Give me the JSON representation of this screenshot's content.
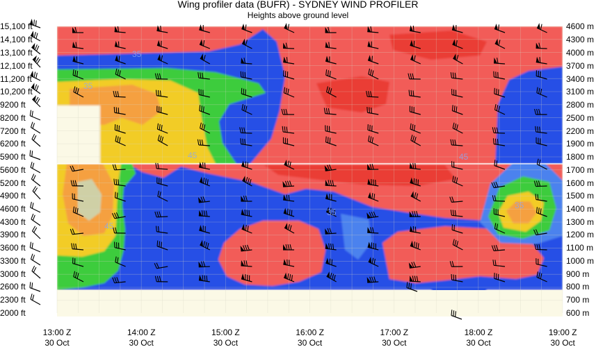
{
  "chart_data": {
    "type": "heatmap",
    "title": "Wing profiler data (BUFR) - SYDNEY WIND PROFILER",
    "subtitle": "Heights above ground level",
    "left_axis_labels": [
      "15,100 ft",
      "14,100 ft",
      "13,100 ft",
      "12,100 ft",
      "11,200 ft",
      "10,200 ft",
      "9200 ft",
      "8200 ft",
      "7200 ft",
      "6200 ft",
      "5900 ft",
      "5600 ft",
      "5200 ft",
      "4900 ft",
      "4600 ft",
      "4300 ft",
      "3900 ft",
      "3600 ft",
      "3300 ft",
      "3000 ft",
      "2600 ft",
      "2300 ft",
      "2000 ft"
    ],
    "right_axis_labels": [
      "4600 m",
      "4300 m",
      "4000 m",
      "3700 m",
      "3400 m",
      "3100 m",
      "2800 m",
      "2500 m",
      "2200 m",
      "1900 m",
      "1800 m",
      "1700 m",
      "1600 m",
      "1500 m",
      "1400 m",
      "1300 m",
      "1200 m",
      "1100 m",
      "1000 m",
      "900 m",
      "800 m",
      "700 m",
      "600 m"
    ],
    "x_times": [
      "13:00 Z",
      "14:00 Z",
      "15:00 Z",
      "16:00 Z",
      "17:00 Z",
      "18:00 Z",
      "19:00 Z"
    ],
    "x_dates": [
      "30 Oct",
      "30 Oct",
      "30 Oct",
      "30 Oct",
      "30 Oct",
      "30 Oct",
      "30 Oct"
    ],
    "colors": {
      "blue": "#2850e6",
      "light_blue": "#4c82ee",
      "green": "#3ccc3c",
      "yellow": "#f2cc28",
      "orange": "#f5a040",
      "pale": "#cfd0a6",
      "red": "#f25c58",
      "red_dark": "#ea3c36",
      "nodata": "#fbf9e6",
      "grid": "#d4d4c4"
    },
    "contour_labels": [
      "35",
      "35",
      "45",
      "45",
      "45",
      "35",
      "35"
    ]
  }
}
